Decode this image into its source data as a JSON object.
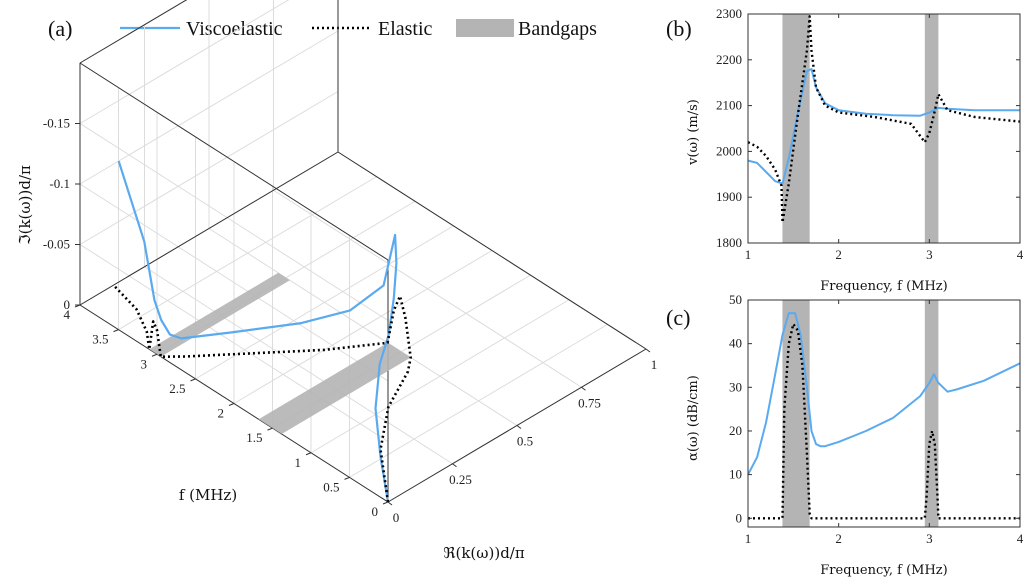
{
  "colors": {
    "viscoelastic": "#5aaaf0",
    "elastic": "#000000",
    "bandgap": "#b4b4b4"
  },
  "legend": {
    "viscoelastic": "Viscoelastic",
    "elastic": "Elastic",
    "bandgaps": "Bandgaps"
  },
  "chart_data": [
    {
      "panel": "(a)",
      "type": "line",
      "view": "3d",
      "xlabel": "ℜ(k(ω))d/π",
      "ylabel": "f  (MHz)",
      "zlabel": "ℑ(k(ω))d/π",
      "xlim": [
        0,
        1
      ],
      "ylim": [
        0,
        4
      ],
      "zlim": [
        0,
        -0.2
      ],
      "xticks": [
        "0",
        "0.25",
        "0.5",
        "0.75",
        "1"
      ],
      "yticks": [
        "0",
        "0.5",
        "1",
        "1.5",
        "2",
        "2.5",
        "3",
        "3.5",
        "4"
      ],
      "zticks": [
        "0",
        "-0.05",
        "-0.1",
        "-0.15"
      ],
      "bandgaps": [
        [
          1.38,
          1.68
        ],
        [
          2.95,
          3.1
        ]
      ],
      "series": [
        {
          "name": "Viscoelastic",
          "points": [
            [
              0,
              0,
              0
            ],
            [
              0.12,
              0.5,
              -0.002
            ],
            [
              0.25,
              1.0,
              -0.005
            ],
            [
              0.38,
              1.38,
              -0.01
            ],
            [
              0.45,
              1.5,
              -0.02
            ],
            [
              0.5,
              1.6,
              -0.04
            ],
            [
              0.54,
              1.7,
              -0.06
            ],
            [
              0.55,
              1.75,
              -0.08
            ],
            [
              0.52,
              1.8,
              -0.04
            ],
            [
              0.45,
              2.0,
              -0.02
            ],
            [
              0.35,
              2.3,
              -0.01
            ],
            [
              0.2,
              2.7,
              -0.005
            ],
            [
              0.08,
              2.95,
              -0.005
            ],
            [
              0.05,
              3.0,
              -0.01
            ],
            [
              0.04,
              3.08,
              -0.02
            ],
            [
              0.05,
              3.2,
              -0.03
            ],
            [
              0.1,
              3.5,
              -0.06
            ],
            [
              0.15,
              4.0,
              -0.1
            ]
          ]
        },
        {
          "name": "Elastic",
          "points": [
            [
              0,
              0,
              0
            ],
            [
              0.15,
              0.6,
              0
            ],
            [
              0.3,
              1.0,
              0
            ],
            [
              0.45,
              1.25,
              0
            ],
            [
              0.5,
              1.38,
              0
            ],
            [
              0.5,
              1.45,
              -0.03
            ],
            [
              0.5,
              1.52,
              -0.045
            ],
            [
              0.5,
              1.6,
              -0.03
            ],
            [
              0.5,
              1.68,
              0
            ],
            [
              0.35,
              2.0,
              0
            ],
            [
              0.2,
              2.4,
              0
            ],
            [
              0.05,
              2.8,
              0
            ],
            [
              0,
              2.95,
              0
            ],
            [
              0,
              3.0,
              -0.02
            ],
            [
              0,
              3.05,
              -0.025
            ],
            [
              0,
              3.1,
              0
            ],
            [
              0.05,
              3.3,
              0
            ],
            [
              0.1,
              3.6,
              0
            ],
            [
              0.13,
              4.0,
              0
            ]
          ]
        }
      ]
    },
    {
      "panel": "(b)",
      "type": "line",
      "xlabel": "Frequency, f (MHz)",
      "ylabel": "v(ω) (m/s)",
      "xlim": [
        1,
        4
      ],
      "ylim": [
        1800,
        2300
      ],
      "xticks": [
        "1",
        "2",
        "3",
        "4"
      ],
      "yticks": [
        "1800",
        "1900",
        "2000",
        "2100",
        "2200",
        "2300"
      ],
      "bandgaps": [
        [
          1.38,
          1.68
        ],
        [
          2.95,
          3.1
        ]
      ],
      "series": [
        {
          "name": "Viscoelastic",
          "x": [
            1,
            1.1,
            1.2,
            1.3,
            1.38,
            1.45,
            1.55,
            1.65,
            1.7,
            1.75,
            1.85,
            2.0,
            2.3,
            2.6,
            2.9,
            3.0,
            3.05,
            3.1,
            3.2,
            3.5,
            4.0
          ],
          "y": [
            1980,
            1975,
            1955,
            1935,
            1930,
            1985,
            2085,
            2175,
            2180,
            2140,
            2105,
            2090,
            2082,
            2079,
            2078,
            2085,
            2090,
            2095,
            2093,
            2090,
            2090
          ]
        },
        {
          "name": "Elastic",
          "x": [
            1,
            1.1,
            1.2,
            1.3,
            1.37,
            1.38,
            1.45,
            1.55,
            1.65,
            1.68,
            1.7,
            1.75,
            1.85,
            2.0,
            2.4,
            2.8,
            2.95,
            3.0,
            3.05,
            3.1,
            3.2,
            3.5,
            4.0
          ],
          "y": [
            2020,
            2010,
            1990,
            1960,
            1925,
            1845,
            1930,
            2080,
            2220,
            2295,
            2220,
            2140,
            2100,
            2085,
            2075,
            2060,
            2020,
            2040,
            2080,
            2125,
            2090,
            2075,
            2065
          ]
        }
      ]
    },
    {
      "panel": "(c)",
      "type": "line",
      "xlabel": "Frequency, f (MHz)",
      "ylabel": "α(ω) (dB/cm)",
      "xlim": [
        1,
        4
      ],
      "ylim": [
        -2,
        50
      ],
      "xticks": [
        "1",
        "2",
        "3",
        "4"
      ],
      "yticks": [
        "0",
        "10",
        "20",
        "30",
        "40",
        "50"
      ],
      "bandgaps": [
        [
          1.38,
          1.68
        ],
        [
          2.95,
          3.1
        ]
      ],
      "series": [
        {
          "name": "Viscoelastic",
          "x": [
            1,
            1.1,
            1.2,
            1.3,
            1.38,
            1.45,
            1.52,
            1.58,
            1.65,
            1.7,
            1.75,
            1.8,
            1.85,
            2.0,
            2.3,
            2.6,
            2.9,
            3.0,
            3.05,
            3.1,
            3.2,
            3.3,
            3.6,
            4.0
          ],
          "y": [
            10,
            14,
            22,
            33,
            42,
            47,
            47,
            42,
            30,
            20,
            17,
            16.5,
            16.5,
            17.5,
            20,
            23,
            28,
            31,
            33,
            31,
            29,
            29.5,
            31.5,
            35.5
          ]
        },
        {
          "name": "Elastic",
          "x": [
            1,
            1.35,
            1.38,
            1.4,
            1.45,
            1.5,
            1.55,
            1.6,
            1.65,
            1.68,
            1.7,
            2.95,
            2.97,
            3.0,
            3.03,
            3.06,
            3.09,
            3.1,
            4.0
          ],
          "y": [
            0,
            0,
            0,
            25,
            40,
            44.5,
            43,
            35,
            15,
            1,
            0,
            0,
            5,
            17,
            20,
            17,
            5,
            0,
            0
          ]
        }
      ]
    }
  ]
}
